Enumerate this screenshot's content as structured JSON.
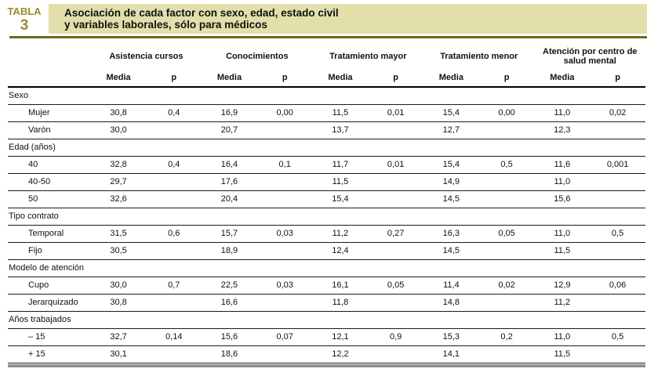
{
  "header": {
    "badge_label": "TABLA",
    "badge_number": "3",
    "title_line1": "Asociación de cada factor con sexo, edad, estado civil",
    "title_line2": "y variables laborales, sólo para médicos"
  },
  "columns": {
    "groups": [
      "Asistencia cursos",
      "Conocimientos",
      "Tratamiento mayor",
      "Tratamiento menor",
      "Atención por centro de salud mental"
    ],
    "media_label": "Media",
    "p_label": "p"
  },
  "sections": [
    {
      "label": "Sexo",
      "rows": [
        {
          "label": "Mujer",
          "values": [
            "30,8",
            "0,4",
            "16,9",
            "0,00",
            "11,5",
            "0,01",
            "15,4",
            "0,00",
            "11,0",
            "0,02"
          ]
        },
        {
          "label": "Varón",
          "values": [
            "30,0",
            "",
            "20,7",
            "",
            "13,7",
            "",
            "12,7",
            "",
            "12,3",
            ""
          ]
        }
      ]
    },
    {
      "label": "Edad (años)",
      "rows": [
        {
          "label": "40",
          "values": [
            "32,8",
            "0,4",
            "16,4",
            "0,1",
            "11,7",
            "0,01",
            "15,4",
            "0,5",
            "11,6",
            "0,001"
          ]
        },
        {
          "label": "40-50",
          "values": [
            "29,7",
            "",
            "17,6",
            "",
            "11,5",
            "",
            "14,9",
            "",
            "11,0",
            ""
          ]
        },
        {
          "label": "50",
          "values": [
            "32,6",
            "",
            "20,4",
            "",
            "15,4",
            "",
            "14,5",
            "",
            "15,6",
            ""
          ]
        }
      ]
    },
    {
      "label": "Tipo contrato",
      "rows": [
        {
          "label": "Temporal",
          "values": [
            "31,5",
            "0,6",
            "15,7",
            "0,03",
            "11,2",
            "0,27",
            "16,3",
            "0,05",
            "11,0",
            "0,5"
          ]
        },
        {
          "label": "Fijo",
          "values": [
            "30,5",
            "",
            "18,9",
            "",
            "12,4",
            "",
            "14,5",
            "",
            "11,5",
            ""
          ]
        }
      ]
    },
    {
      "label": "Modelo de atención",
      "rows": [
        {
          "label": "Cupo",
          "values": [
            "30,0",
            "0,7",
            "22,5",
            "0,03",
            "16,1",
            "0,05",
            "11,4",
            "0,02",
            "12,9",
            "0,06"
          ]
        },
        {
          "label": "Jerarquizado",
          "values": [
            "30,8",
            "",
            "16,6",
            "",
            "11,8",
            "",
            "14,8",
            "",
            "11,2",
            ""
          ]
        }
      ]
    },
    {
      "label": "Años trabajados",
      "rows": [
        {
          "label": "– 15",
          "values": [
            "32,7",
            "0,14",
            "15,6",
            "0,07",
            "12,1",
            "0,9",
            "15,3",
            "0,2",
            "11,0",
            "0,5"
          ]
        },
        {
          "label": "+ 15",
          "values": [
            "30,1",
            "",
            "18,6",
            "",
            "12,2",
            "",
            "14,1",
            "",
            "11,5",
            ""
          ]
        }
      ]
    }
  ],
  "colors": {
    "accent": "#9a8c2a",
    "title_bg": "#e3dfab",
    "header_rule": "#6e6a1e",
    "row_line": "#1c1c1c",
    "bottom_bar": "#8f8f8f",
    "text": "#111111"
  }
}
